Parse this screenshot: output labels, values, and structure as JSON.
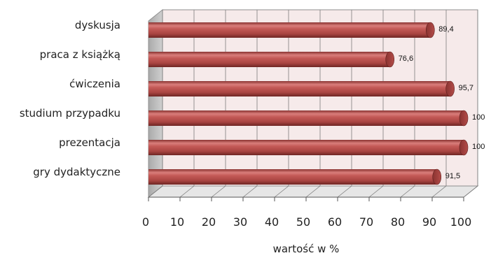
{
  "chart_data": {
    "type": "bar",
    "orientation": "horizontal",
    "categories": [
      "dyskusja",
      "praca z książką",
      "ćwiczenia",
      "studium przypadku",
      "prezentacja",
      "gry dydaktyczne"
    ],
    "values": [
      89.4,
      76.6,
      95.7,
      100,
      100,
      91.5
    ],
    "value_labels": [
      "89,4",
      "76,6",
      "95,7",
      "100",
      "100",
      "91,5"
    ],
    "xlabel": "wartość w %",
    "ylabel": "",
    "xlim": [
      0,
      100
    ],
    "xticks": [
      0,
      10,
      20,
      30,
      40,
      50,
      60,
      70,
      80,
      90,
      100
    ],
    "grid": true,
    "style": "3d-cylinder",
    "colors": {
      "bar": "#c0504d",
      "bar_light": "#f0a8a6",
      "bar_dark": "#7a2a28",
      "wall": "#f6eaea",
      "floor": "#e6e6e6",
      "side_wall": "#bdbdbd"
    }
  }
}
